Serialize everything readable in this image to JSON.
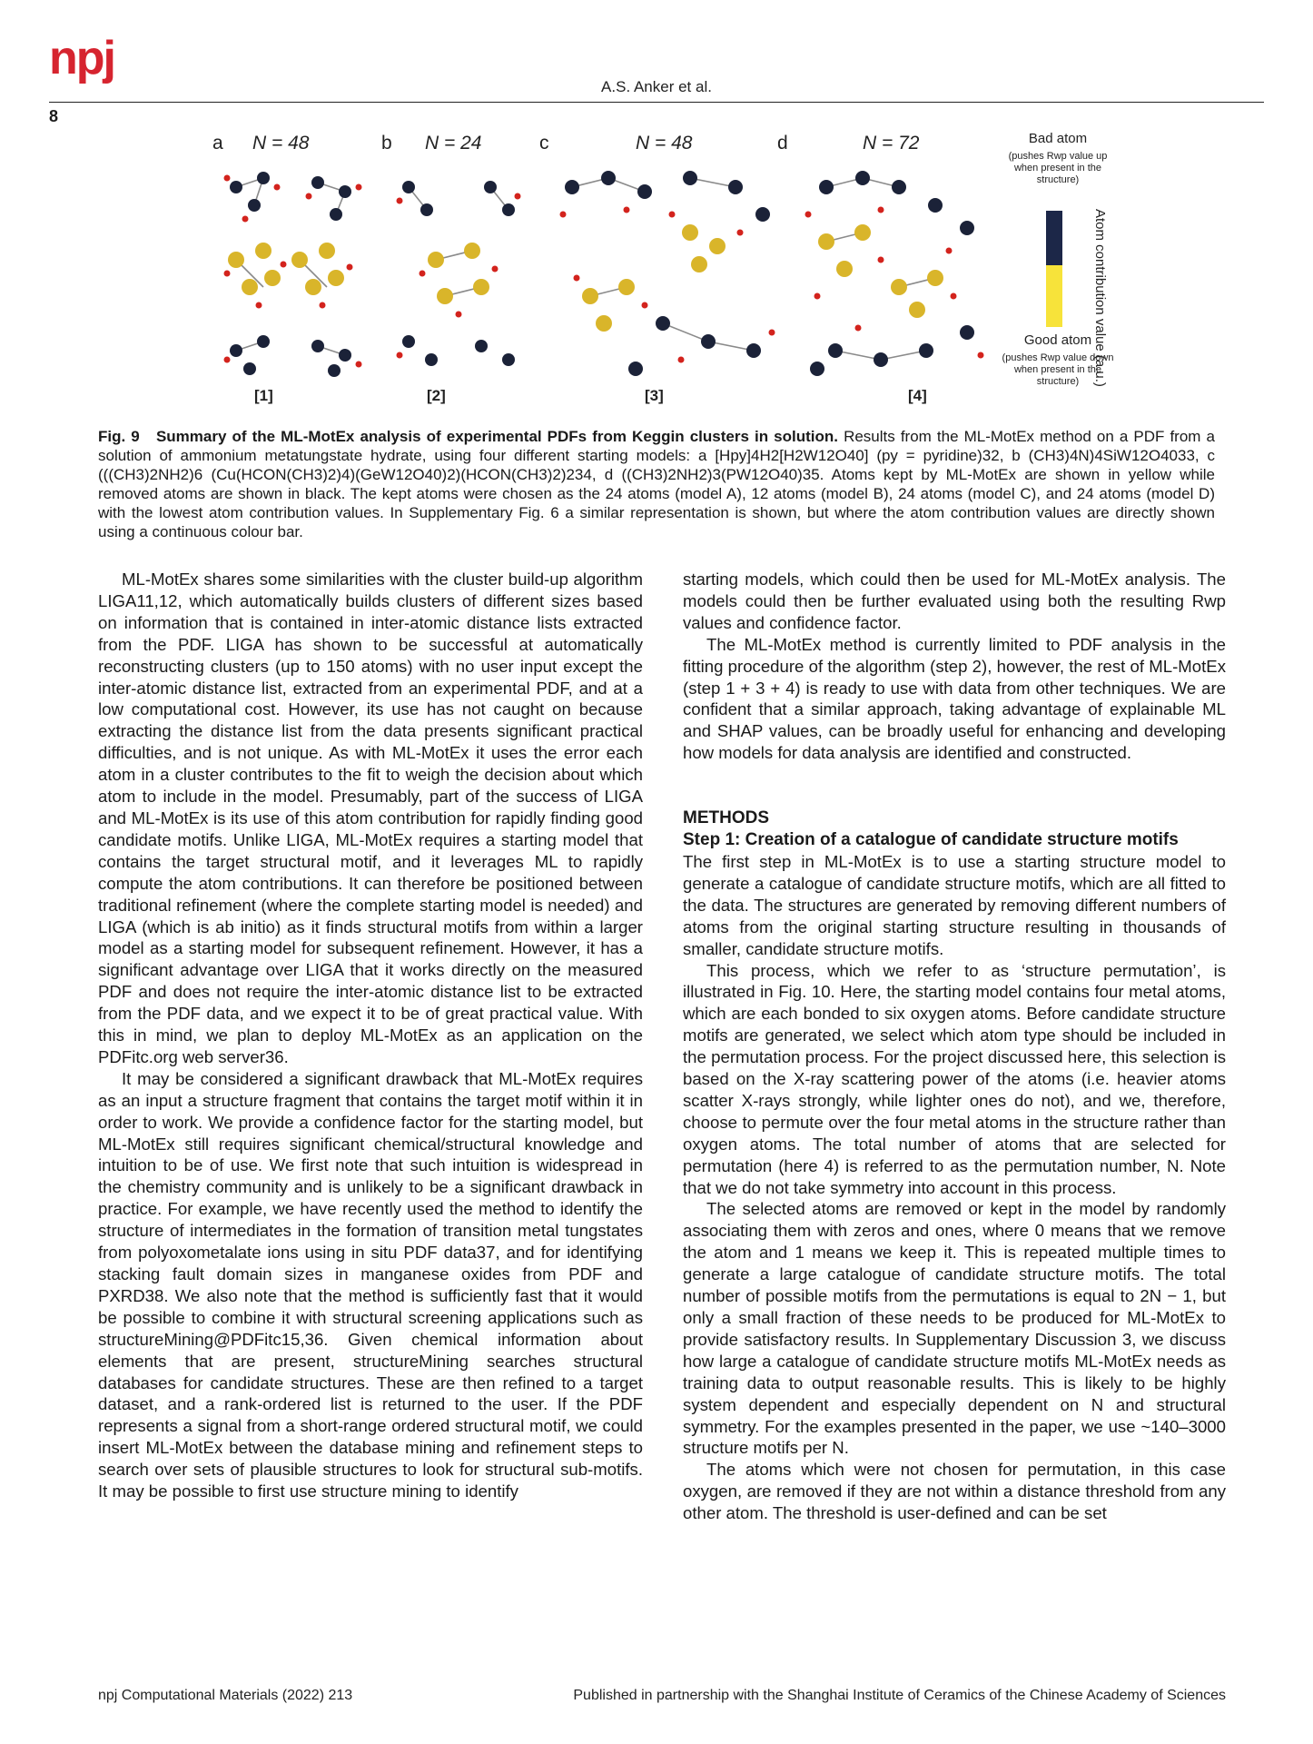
{
  "header": {
    "logo": "npj",
    "author": "A.S. Anker et al.",
    "page_number": "8"
  },
  "figure": {
    "panels": [
      {
        "letter": "a",
        "n_label": "N = 48",
        "model": "[1]"
      },
      {
        "letter": "b",
        "n_label": "N = 24",
        "model": "[2]"
      },
      {
        "letter": "c",
        "n_label": "N = 48",
        "model": "[3]"
      },
      {
        "letter": "d",
        "n_label": "N = 72",
        "model": "[4]"
      }
    ],
    "legend": {
      "bad_title": "Bad atom",
      "bad_note": "(pushes Rwp value up when present in the structure)",
      "good_title": "Good atom",
      "good_note": "(pushes Rwp value down when present in the structure)",
      "axis_label": "Atom contribution value (a.u.)",
      "bad_color": "#1c2748",
      "good_color": "#f7e33a"
    },
    "colors": {
      "kept_atom": "#d9b52a",
      "removed_atom": "#1b2238",
      "oxygen": "#d3231d",
      "bond": "#8a8a8a"
    }
  },
  "caption": {
    "label": "Fig. 9",
    "title": "Summary of the ML-MotEx analysis of experimental PDFs from Keggin clusters in solution.",
    "text": "Results from the ML-MotEx method on a PDF from a solution of ammonium metatungstate hydrate, using four different starting models: a [Hpy]4H2[H2W12O40] (py = pyridine)32, b (CH3)4N)4SiW12O4033, c (((CH3)2NH2)6 (Cu(HCON(CH3)2)4)(GeW12O40)2)(HCON(CH3)2)234, d ((CH3)2NH2)3(PW12O40)35. Atoms kept by ML-MotEx are shown in yellow while removed atoms are shown in black. The kept atoms were chosen as the 24 atoms (model A), 12 atoms (model B), 24 atoms (model C), and 24 atoms (model D) with the lowest atom contribution values. In Supplementary Fig. 6 a similar representation is shown, but where the atom contribution values are directly shown using a continuous colour bar."
  },
  "body_left": [
    "ML-MotEx shares some similarities with the cluster build-up algorithm LIGA11,12, which automatically builds clusters of different sizes based on information that is contained in inter-atomic distance lists extracted from the PDF. LIGA has shown to be successful at automatically reconstructing clusters (up to 150 atoms) with no user input except the inter-atomic distance list, extracted from an experimental PDF, and at a low computational cost. However, its use has not caught on because extracting the distance list from the data presents significant practical difficulties, and is not unique. As with ML-MotEx it uses the error each atom in a cluster contributes to the fit to weigh the decision about which atom to include in the model. Presumably, part of the success of LIGA and ML-MotEx is its use of this atom contribution for rapidly finding good candidate motifs. Unlike LIGA, ML-MotEx requires a starting model that contains the target structural motif, and it leverages ML to rapidly compute the atom contributions. It can therefore be positioned between traditional refinement (where the complete starting model is needed) and LIGA (which is ab initio) as it finds structural motifs from within a larger model as a starting model for subsequent refinement. However, it has a significant advantage over LIGA that it works directly on the measured PDF and does not require the inter-atomic distance list to be extracted from the PDF data, and we expect it to be of great practical value. With this in mind, we plan to deploy ML-MotEx as an application on the PDFitc.org web server36.",
    "It may be considered a significant drawback that ML-MotEx requires as an input a structure fragment that contains the target motif within it in order to work. We provide a confidence factor for the starting model, but ML-MotEx still requires significant chemical/structural knowledge and intuition to be of use. We first note that such intuition is widespread in the chemistry community and is unlikely to be a significant drawback in practice. For example, we have recently used the method to identify the structure of intermediates in the formation of transition metal tungstates from polyoxometalate ions using in situ PDF data37, and for identifying stacking fault domain sizes in manganese oxides from PDF and PXRD38. We also note that the method is sufficiently fast that it would be possible to combine it with structural screening applications such as structureMining@PDFitc15,36. Given chemical information about elements that are present, structureMining searches structural databases for candidate structures. These are then refined to a target dataset, and a rank-ordered list is returned to the user. If the PDF represents a signal from a short-range ordered structural motif, we could insert ML-MotEx between the database mining and refinement steps to search over sets of plausible structures to look for structural sub-motifs. It may be possible to first use structure mining to identify"
  ],
  "body_right": {
    "continuation": "starting models, which could then be used for ML-MotEx analysis. The models could then be further evaluated using both the resulting Rwp values and confidence factor.",
    "para2": "The ML-MotEx method is currently limited to PDF analysis in the fitting procedure of the algorithm (step 2), however, the rest of ML-MotEx (step 1 + 3 + 4) is ready to use with data from other techniques. We are confident that a similar approach, taking advantage of explainable ML and SHAP values, can be broadly useful for enhancing and developing how models for data analysis are identified and constructed.",
    "section_heading": "METHODS",
    "subsection_heading": "Step 1: Creation of a catalogue of candidate structure motifs",
    "paragraphs": [
      "The first step in ML-MotEx is to use a starting structure model to generate a catalogue of candidate structure motifs, which are all fitted to the data. The structures are generated by removing different numbers of atoms from the original starting structure resulting in thousands of smaller, candidate structure motifs.",
      "This process, which we refer to as ‘structure permutation’, is illustrated in Fig. 10. Here, the starting model contains four metal atoms, which are each bonded to six oxygen atoms. Before candidate structure motifs are generated, we select which atom type should be included in the permutation process. For the project discussed here, this selection is based on the X-ray scattering power of the atoms (i.e. heavier atoms scatter X-rays strongly, while lighter ones do not), and we, therefore, choose to permute over the four metal atoms in the structure rather than oxygen atoms. The total number of atoms that are selected for permutation (here 4) is referred to as the permutation number, N. Note that we do not take symmetry into account in this process.",
      "The selected atoms are removed or kept in the model by randomly associating them with zeros and ones, where 0 means that we remove the atom and 1 means we keep it. This is repeated multiple times to generate a large catalogue of candidate structure motifs. The total number of possible motifs from the permutations is equal to 2N − 1, but only a small fraction of these needs to be produced for ML-MotEx to provide satisfactory results. In Supplementary Discussion 3, we discuss how large a catalogue of candidate structure motifs ML-MotEx needs as training data to output reasonable results. This is likely to be highly system dependent and especially dependent on N and structural symmetry. For the examples presented in the paper, we use ~140–3000 structure motifs per N.",
      "The atoms which were not chosen for permutation, in this case oxygen, are removed if they are not within a distance threshold from any other atom. The threshold is user-defined and can be set"
    ]
  },
  "footer": {
    "journal": "npj Computational Materials (2022) 213",
    "publisher": "Published in partnership with the Shanghai Institute of Ceramics of the Chinese Academy of Sciences"
  }
}
